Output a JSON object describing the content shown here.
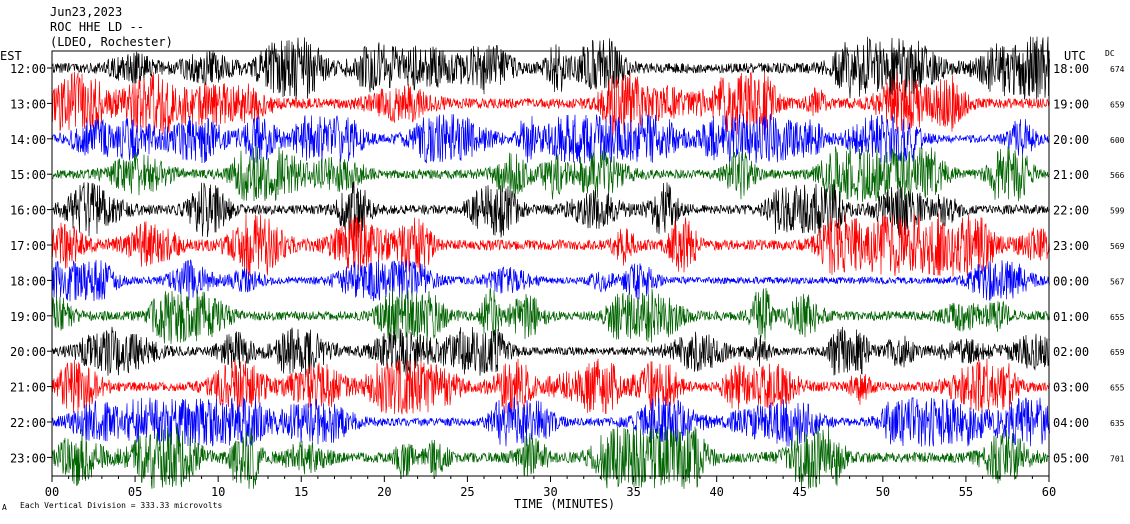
{
  "header": {
    "date": "Jun23,2023",
    "station": "ROC HHE LD --",
    "network": "(LDEO, Rochester)"
  },
  "left_label": "EST",
  "right_label": "UTC",
  "dc_label": "DC",
  "x_axis_title": "TIME (MINUTES)",
  "footer_note": "Each Vertical Division =  333.33 microvolts",
  "footer_mark": "A",
  "chart_data": {
    "type": "line",
    "title": "",
    "xlabel": "TIME (MINUTES)",
    "ylabel": "",
    "xlim": [
      0,
      60
    ],
    "x_ticks": [
      "00",
      "05",
      "10",
      "15",
      "20",
      "25",
      "30",
      "35",
      "40",
      "45",
      "50",
      "55",
      "60"
    ],
    "colors": [
      "#000000",
      "#ff0000",
      "#0000ff",
      "#006400"
    ],
    "grid": false,
    "legend": "none",
    "rows": [
      {
        "est": "12:00",
        "utc": "18:00",
        "dc": "674",
        "color": "#000000",
        "amplitude": 0.9
      },
      {
        "est": "13:00",
        "utc": "19:00",
        "dc": "659",
        "color": "#ff0000",
        "amplitude": 0.9
      },
      {
        "est": "14:00",
        "utc": "20:00",
        "dc": "600",
        "color": "#0000ff",
        "amplitude": 0.7
      },
      {
        "est": "15:00",
        "utc": "21:00",
        "dc": "566",
        "color": "#006400",
        "amplitude": 0.8
      },
      {
        "est": "16:00",
        "utc": "22:00",
        "dc": "599",
        "color": "#000000",
        "amplitude": 0.8
      },
      {
        "est": "17:00",
        "utc": "23:00",
        "dc": "569",
        "color": "#ff0000",
        "amplitude": 0.9
      },
      {
        "est": "18:00",
        "utc": "00:00",
        "dc": "567",
        "color": "#0000ff",
        "amplitude": 0.6
      },
      {
        "est": "19:00",
        "utc": "01:00",
        "dc": "655",
        "color": "#006400",
        "amplitude": 0.8
      },
      {
        "est": "20:00",
        "utc": "02:00",
        "dc": "659",
        "color": "#000000",
        "amplitude": 0.7
      },
      {
        "est": "21:00",
        "utc": "03:00",
        "dc": "655",
        "color": "#ff0000",
        "amplitude": 0.8
      },
      {
        "est": "22:00",
        "utc": "04:00",
        "dc": "635",
        "color": "#0000ff",
        "amplitude": 0.7
      },
      {
        "est": "23:00",
        "utc": "05:00",
        "dc": "701",
        "color": "#006400",
        "amplitude": 0.9
      }
    ]
  }
}
